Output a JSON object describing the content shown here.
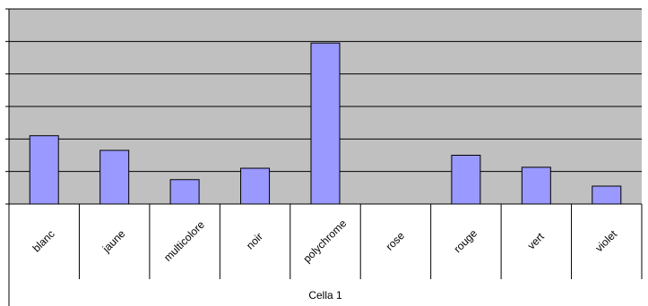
{
  "chart_data": {
    "type": "bar",
    "categories": [
      "blanc",
      "jaune",
      "multicolore",
      "noir",
      "polychrome",
      "rose",
      "rouge",
      "vert",
      "violet"
    ],
    "values": [
      2.1,
      1.65,
      0.75,
      1.1,
      4.95,
      0,
      1.5,
      1.13,
      0.55
    ],
    "xlabel": "Cella 1",
    "ylim": [
      0,
      6
    ],
    "grid": true,
    "legend": "none",
    "colors": {
      "plot_background": "#c0c0c0",
      "bar_fill": "#9999ff",
      "bar_stroke": "#000000",
      "gridline": "#000000",
      "axis": "#000000"
    }
  }
}
